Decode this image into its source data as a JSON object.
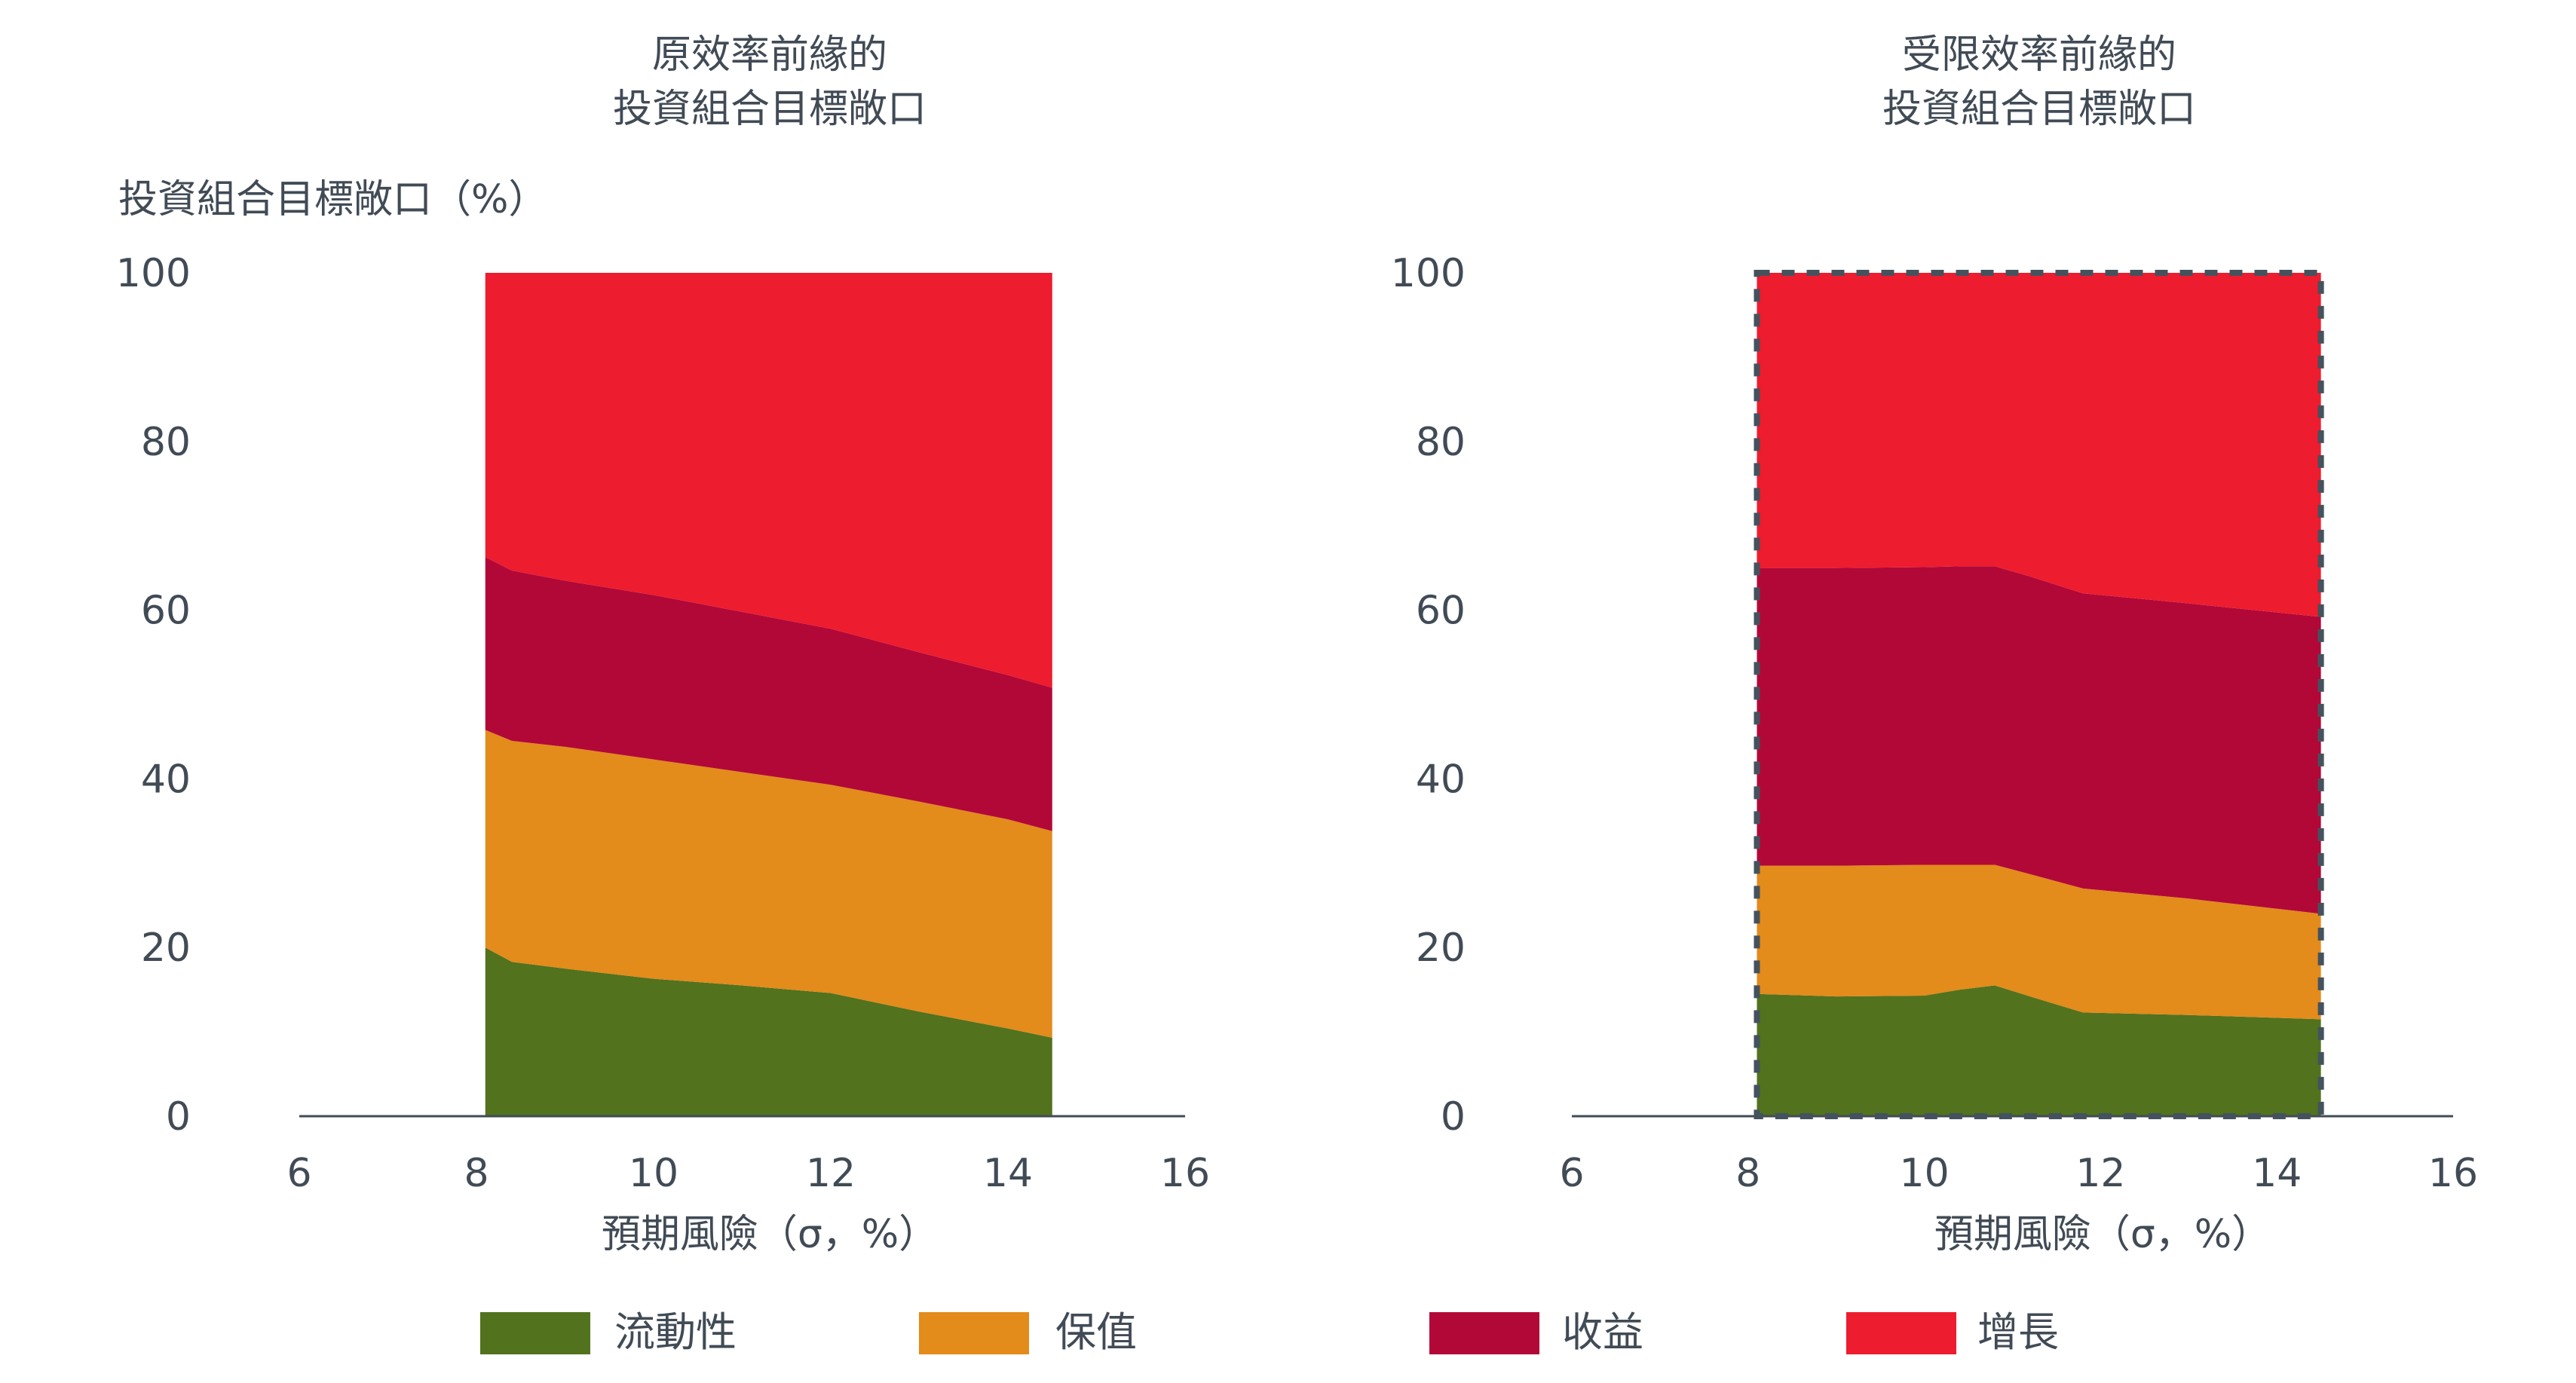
{
  "colors": {
    "liquidity": "#52721e",
    "preservation": "#e38b1b",
    "income": "#b20838",
    "growth": "#ed1c2e",
    "text": "#414b56",
    "frame": "#44525e"
  },
  "legend": [
    {
      "name": "流動性",
      "color": "#52721e"
    },
    {
      "name": "保值",
      "color": "#e38b1b"
    },
    {
      "name": "收益",
      "color": "#b20838"
    },
    {
      "name": "增長",
      "color": "#ed1c2e"
    }
  ],
  "chart_data": [
    {
      "type": "area",
      "stacked": true,
      "title": [
        "原效率前緣的",
        "投資組合目標敞口"
      ],
      "ylabel": "投資組合目標敞口（%）",
      "xlabel": "預期風險（σ，%）",
      "xlim": [
        6,
        16
      ],
      "ylim": [
        0,
        100
      ],
      "xticks": [
        6,
        8,
        10,
        12,
        14,
        16
      ],
      "yticks": [
        0,
        20,
        40,
        60,
        80,
        100
      ],
      "grid": false,
      "legend_position": "bottom",
      "x": [
        8.1,
        8.4,
        9,
        10,
        11,
        12,
        13,
        14,
        14.5
      ],
      "series": [
        {
          "name": "流動性",
          "values": [
            20,
            18.3,
            17.5,
            16.3,
            15.5,
            14.6,
            12.4,
            10.4,
            9.3
          ]
        },
        {
          "name": "保值",
          "values": [
            25.8,
            26.2,
            26.3,
            26,
            25.3,
            24.7,
            24.9,
            24.8,
            24.5
          ]
        },
        {
          "name": "收益",
          "values": [
            20.5,
            20.2,
            19.7,
            19.5,
            19,
            18.5,
            17.7,
            17.1,
            17
          ]
        },
        {
          "name": "增長",
          "values": [
            33.7,
            35.3,
            36.5,
            38.2,
            40.2,
            42.2,
            45,
            47.7,
            49.2
          ]
        }
      ]
    },
    {
      "type": "area",
      "stacked": true,
      "title": [
        "受限效率前緣的",
        "投資組合目標敞口"
      ],
      "xlabel": "預期風險（σ，%）",
      "xlim": [
        6,
        16
      ],
      "ylim": [
        0,
        100
      ],
      "xticks": [
        6,
        8,
        10,
        12,
        14,
        16
      ],
      "yticks": [
        0,
        20,
        40,
        60,
        80,
        100
      ],
      "grid": false,
      "dashed_frame": true,
      "x": [
        8.1,
        9,
        10,
        10.4,
        10.8,
        11.2,
        11.8,
        13,
        14.5
      ],
      "series": [
        {
          "name": "流動性",
          "values": [
            14.5,
            14.2,
            14.3,
            15,
            15.5,
            14.2,
            12.3,
            12,
            11.5
          ]
        },
        {
          "name": "保值",
          "values": [
            15.2,
            15.5,
            15.5,
            14.8,
            14.3,
            14.5,
            14.7,
            13.8,
            12.5
          ]
        },
        {
          "name": "收益",
          "values": [
            35.3,
            35.3,
            35.3,
            35.4,
            35.4,
            35.3,
            35,
            35,
            35.2
          ]
        },
        {
          "name": "增長",
          "values": [
            35,
            35,
            34.9,
            34.8,
            34.8,
            36,
            38,
            39.2,
            40.8
          ]
        }
      ]
    }
  ]
}
